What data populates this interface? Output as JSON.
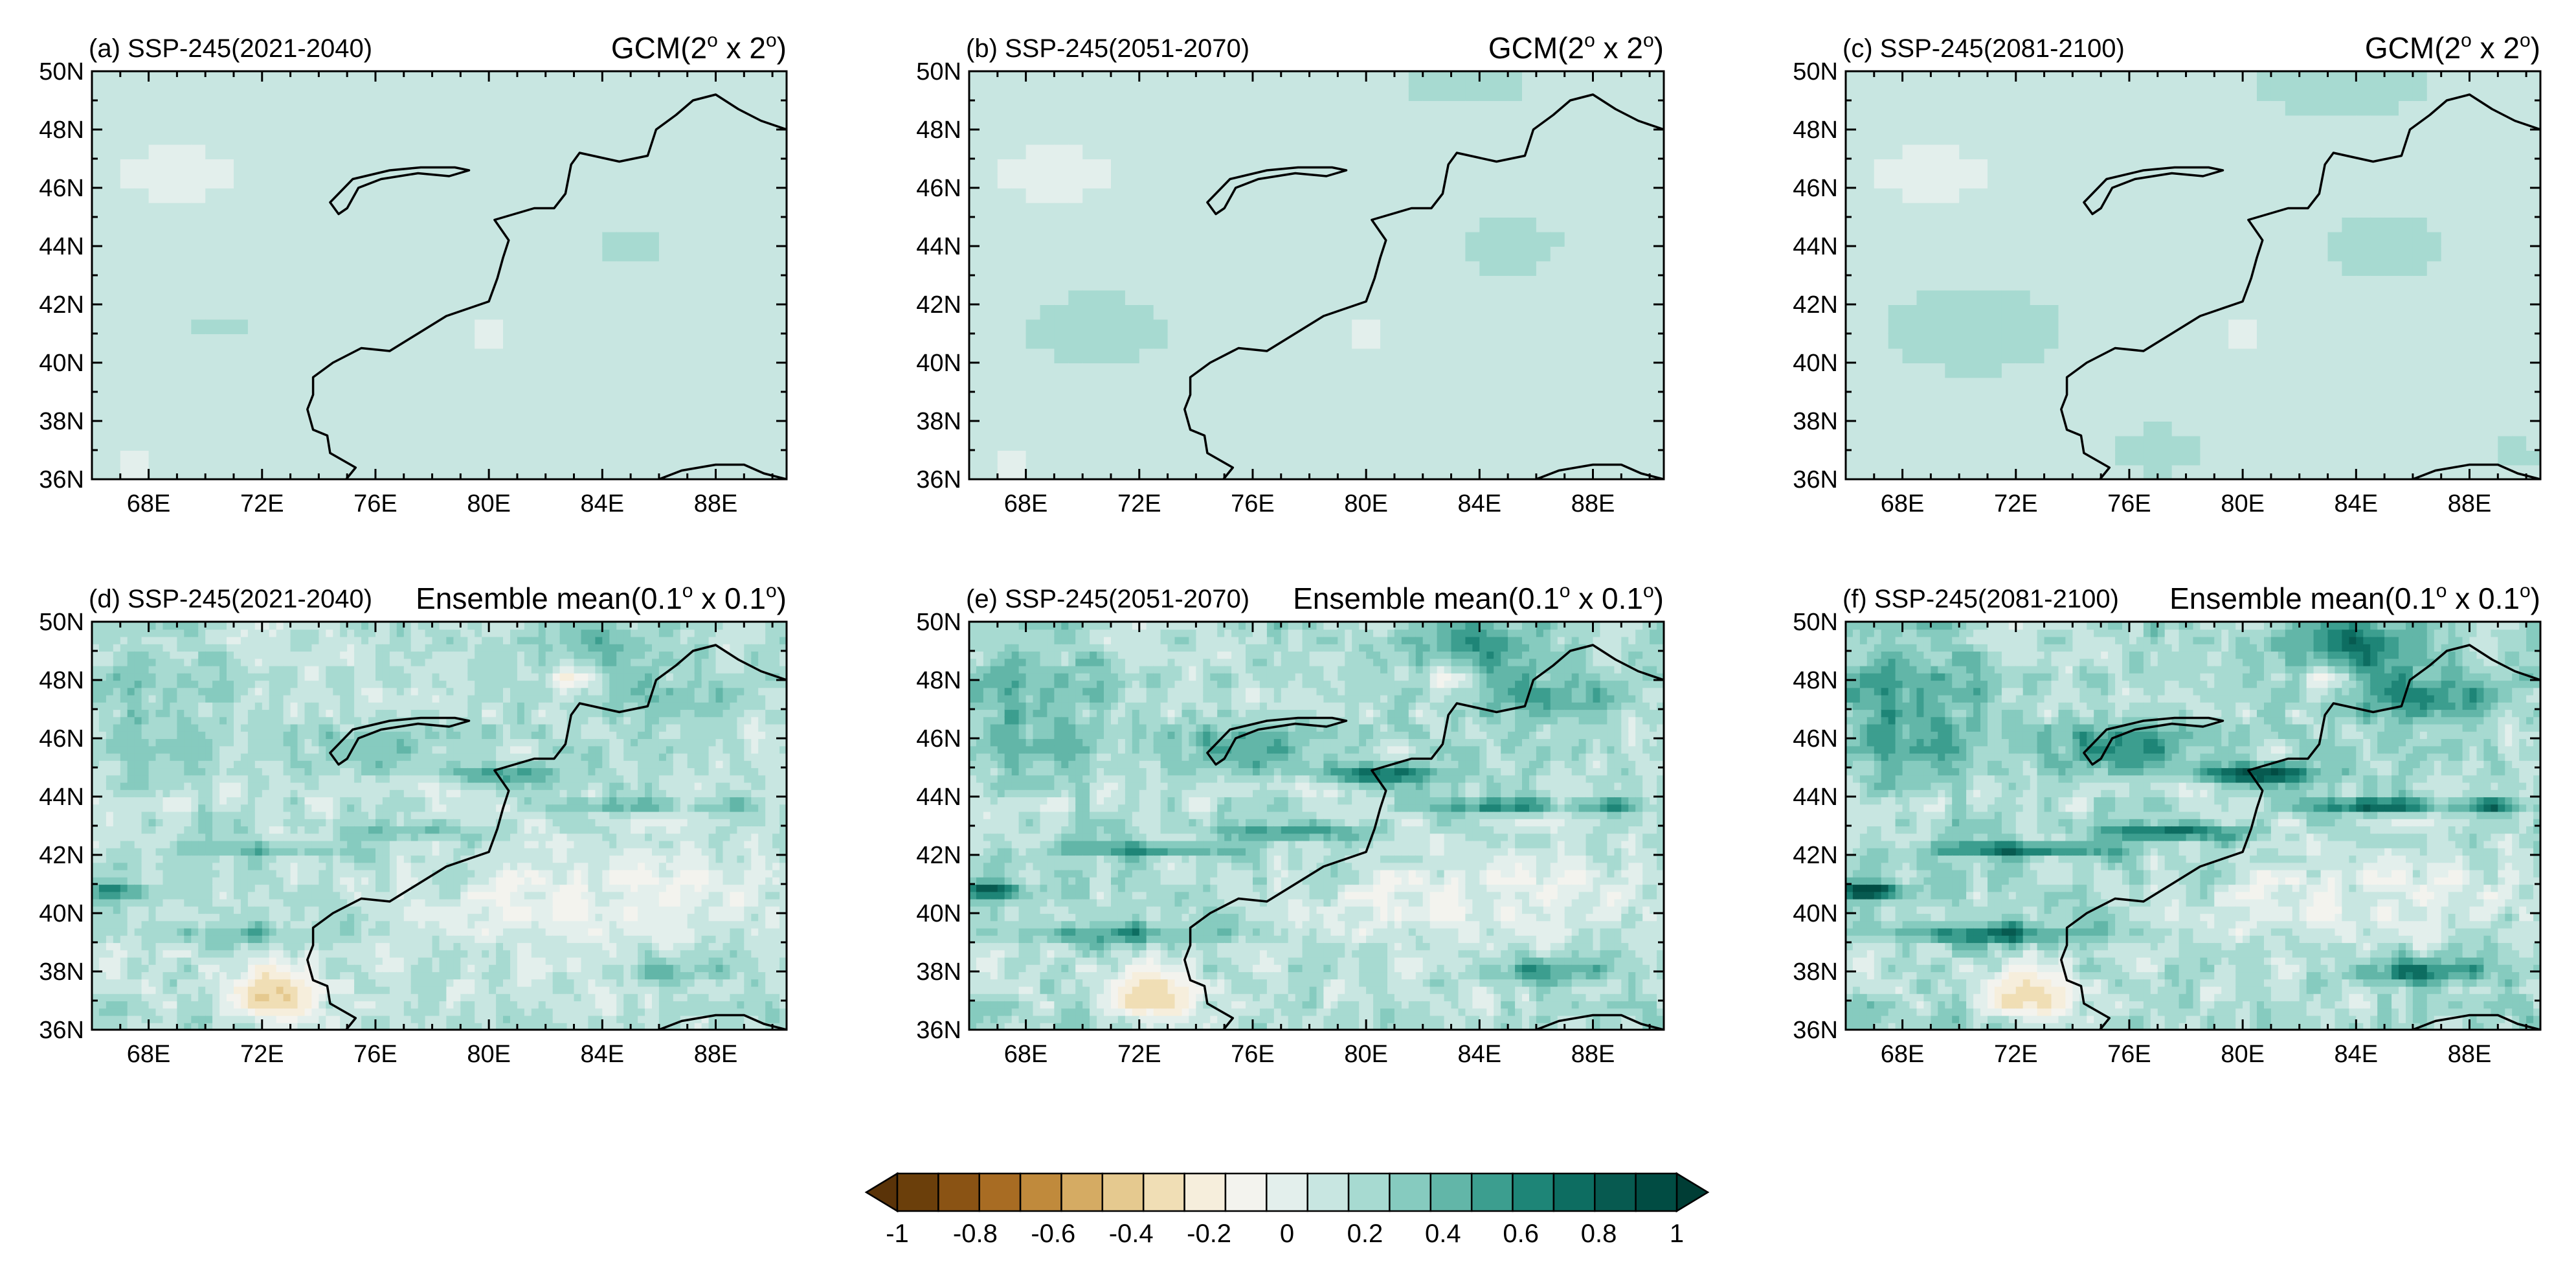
{
  "figure": {
    "panels": [
      {
        "id": "a",
        "label_left": "(a) SSP-245(2021-2040)",
        "label_right_main": "GCM(2",
        "label_right_sup1": "o",
        "label_right_mid": " x 2",
        "label_right_sup2": "o",
        "label_right_end": ")",
        "resolution": "coarse",
        "period": "2021-2040"
      },
      {
        "id": "b",
        "label_left": "(b) SSP-245(2051-2070)",
        "label_right_main": "GCM(2",
        "label_right_sup1": "o",
        "label_right_mid": " x 2",
        "label_right_sup2": "o",
        "label_right_end": ")",
        "resolution": "coarse",
        "period": "2051-2070"
      },
      {
        "id": "c",
        "label_left": "(c) SSP-245(2081-2100)",
        "label_right_main": "GCM(2",
        "label_right_sup1": "o",
        "label_right_mid": " x 2",
        "label_right_sup2": "o",
        "label_right_end": ")",
        "resolution": "coarse",
        "period": "2081-2100"
      },
      {
        "id": "d",
        "label_left": "(d) SSP-245(2021-2040)",
        "label_right_main": "Ensemble mean(0.1",
        "label_right_sup1": "o",
        "label_right_mid": " x 0.1",
        "label_right_sup2": "o",
        "label_right_end": ")",
        "resolution": "fine",
        "period": "2021-2040"
      },
      {
        "id": "e",
        "label_left": "(e) SSP-245(2051-2070)",
        "label_right_main": "Ensemble mean(0.1",
        "label_right_sup1": "o",
        "label_right_mid": " x 0.1",
        "label_right_sup2": "o",
        "label_right_end": ")",
        "resolution": "fine",
        "period": "2051-2070"
      },
      {
        "id": "f",
        "label_left": "(f) SSP-245(2081-2100)",
        "label_right_main": "Ensemble mean(0.1",
        "label_right_sup1": "o",
        "label_right_mid": " x 0.1",
        "label_right_sup2": "o",
        "label_right_end": ")",
        "resolution": "fine",
        "period": "2081-2100"
      }
    ],
    "lat_ticks": [
      "50N",
      "48N",
      "46N",
      "44N",
      "42N",
      "40N",
      "38N",
      "36N"
    ],
    "lon_ticks": [
      "68E",
      "72E",
      "76E",
      "80E",
      "84E",
      "88E"
    ],
    "lat_range": [
      36,
      50
    ],
    "lon_range": [
      66,
      90.5
    ]
  },
  "colorbar": {
    "labels": [
      "-1",
      "-0.8",
      "-0.6",
      "-0.4",
      "-0.2",
      "0",
      "0.2",
      "0.4",
      "0.6",
      "0.8",
      "1"
    ],
    "range": [
      -1,
      1
    ],
    "colors": [
      "#6b3f0b",
      "#8a5314",
      "#a86c23",
      "#c08a3c",
      "#d5ab63",
      "#e5c98f",
      "#f0deb5",
      "#f6eedc",
      "#f3f3ee",
      "#e3efec",
      "#c8e6e1",
      "#a7dad1",
      "#86cbbf",
      "#62b6a8",
      "#3c9e8f",
      "#1e8577",
      "#0d6d61",
      "#075a50",
      "#014c43"
    ]
  }
}
